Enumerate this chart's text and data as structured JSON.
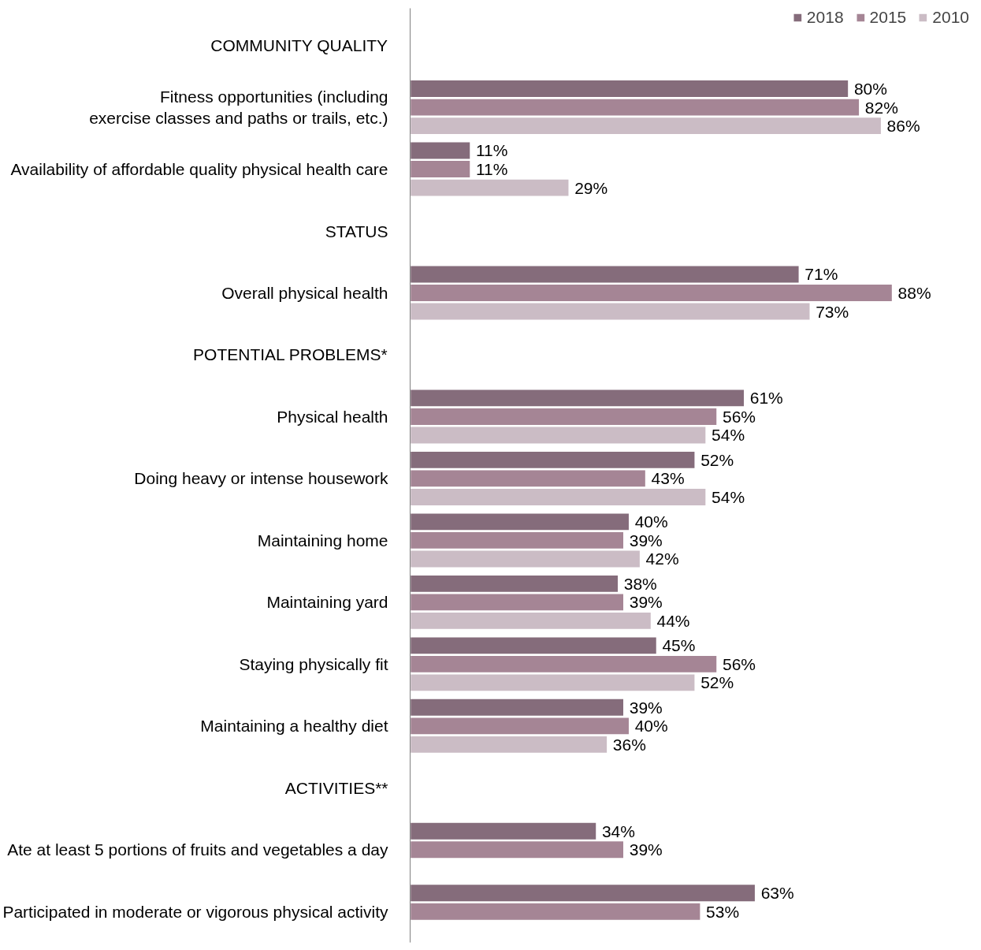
{
  "chart_data": {
    "type": "bar",
    "orientation": "horizontal",
    "categories": [
      "COMMUNITY QUALITY",
      "Fitness opportunities (including\nexercise classes and paths or trails, etc.)",
      "Availability of affordable quality physical health care",
      "STATUS",
      "Overall physical health",
      "POTENTIAL PROBLEMS*",
      "Physical health",
      "Doing heavy or intense housework",
      "Maintaining home",
      "Maintaining yard",
      "Staying physically fit",
      "Maintaining a healthy diet",
      "ACTIVITIES**",
      "Ate at least 5 portions of fruits and vegetables a day",
      "Participated in moderate or vigorous physical activity"
    ],
    "series": [
      {
        "name": "2018",
        "color": "#856c7b",
        "values": [
          null,
          80,
          11,
          null,
          71,
          null,
          61,
          52,
          40,
          38,
          45,
          39,
          null,
          34,
          63
        ],
        "value_labels": [
          null,
          "80%",
          "11%",
          null,
          "71%",
          null,
          "61%",
          "52%",
          "40%",
          "38%",
          "45%",
          "39%",
          null,
          "34%",
          "63%"
        ]
      },
      {
        "name": "2015",
        "color": "#a58595",
        "values": [
          null,
          82,
          11,
          null,
          88,
          null,
          56,
          43,
          39,
          39,
          56,
          40,
          null,
          39,
          53
        ],
        "value_labels": [
          null,
          "82%",
          "11%",
          null,
          "88%",
          null,
          "56%",
          "43%",
          "39%",
          "39%",
          "56%",
          "40%",
          null,
          "39%",
          "53%"
        ]
      },
      {
        "name": "2010",
        "color": "#cbbcc5",
        "values": [
          null,
          86,
          29,
          null,
          73,
          null,
          54,
          54,
          42,
          44,
          52,
          36,
          null,
          null,
          null
        ],
        "value_labels": [
          null,
          "86%",
          "29%",
          null,
          "73%",
          null,
          "54%",
          "54%",
          "42%",
          "44%",
          "52%",
          "36%",
          null,
          null,
          null
        ]
      }
    ],
    "tick_labels": "y",
    "grid": false,
    "legend": "top right"
  }
}
